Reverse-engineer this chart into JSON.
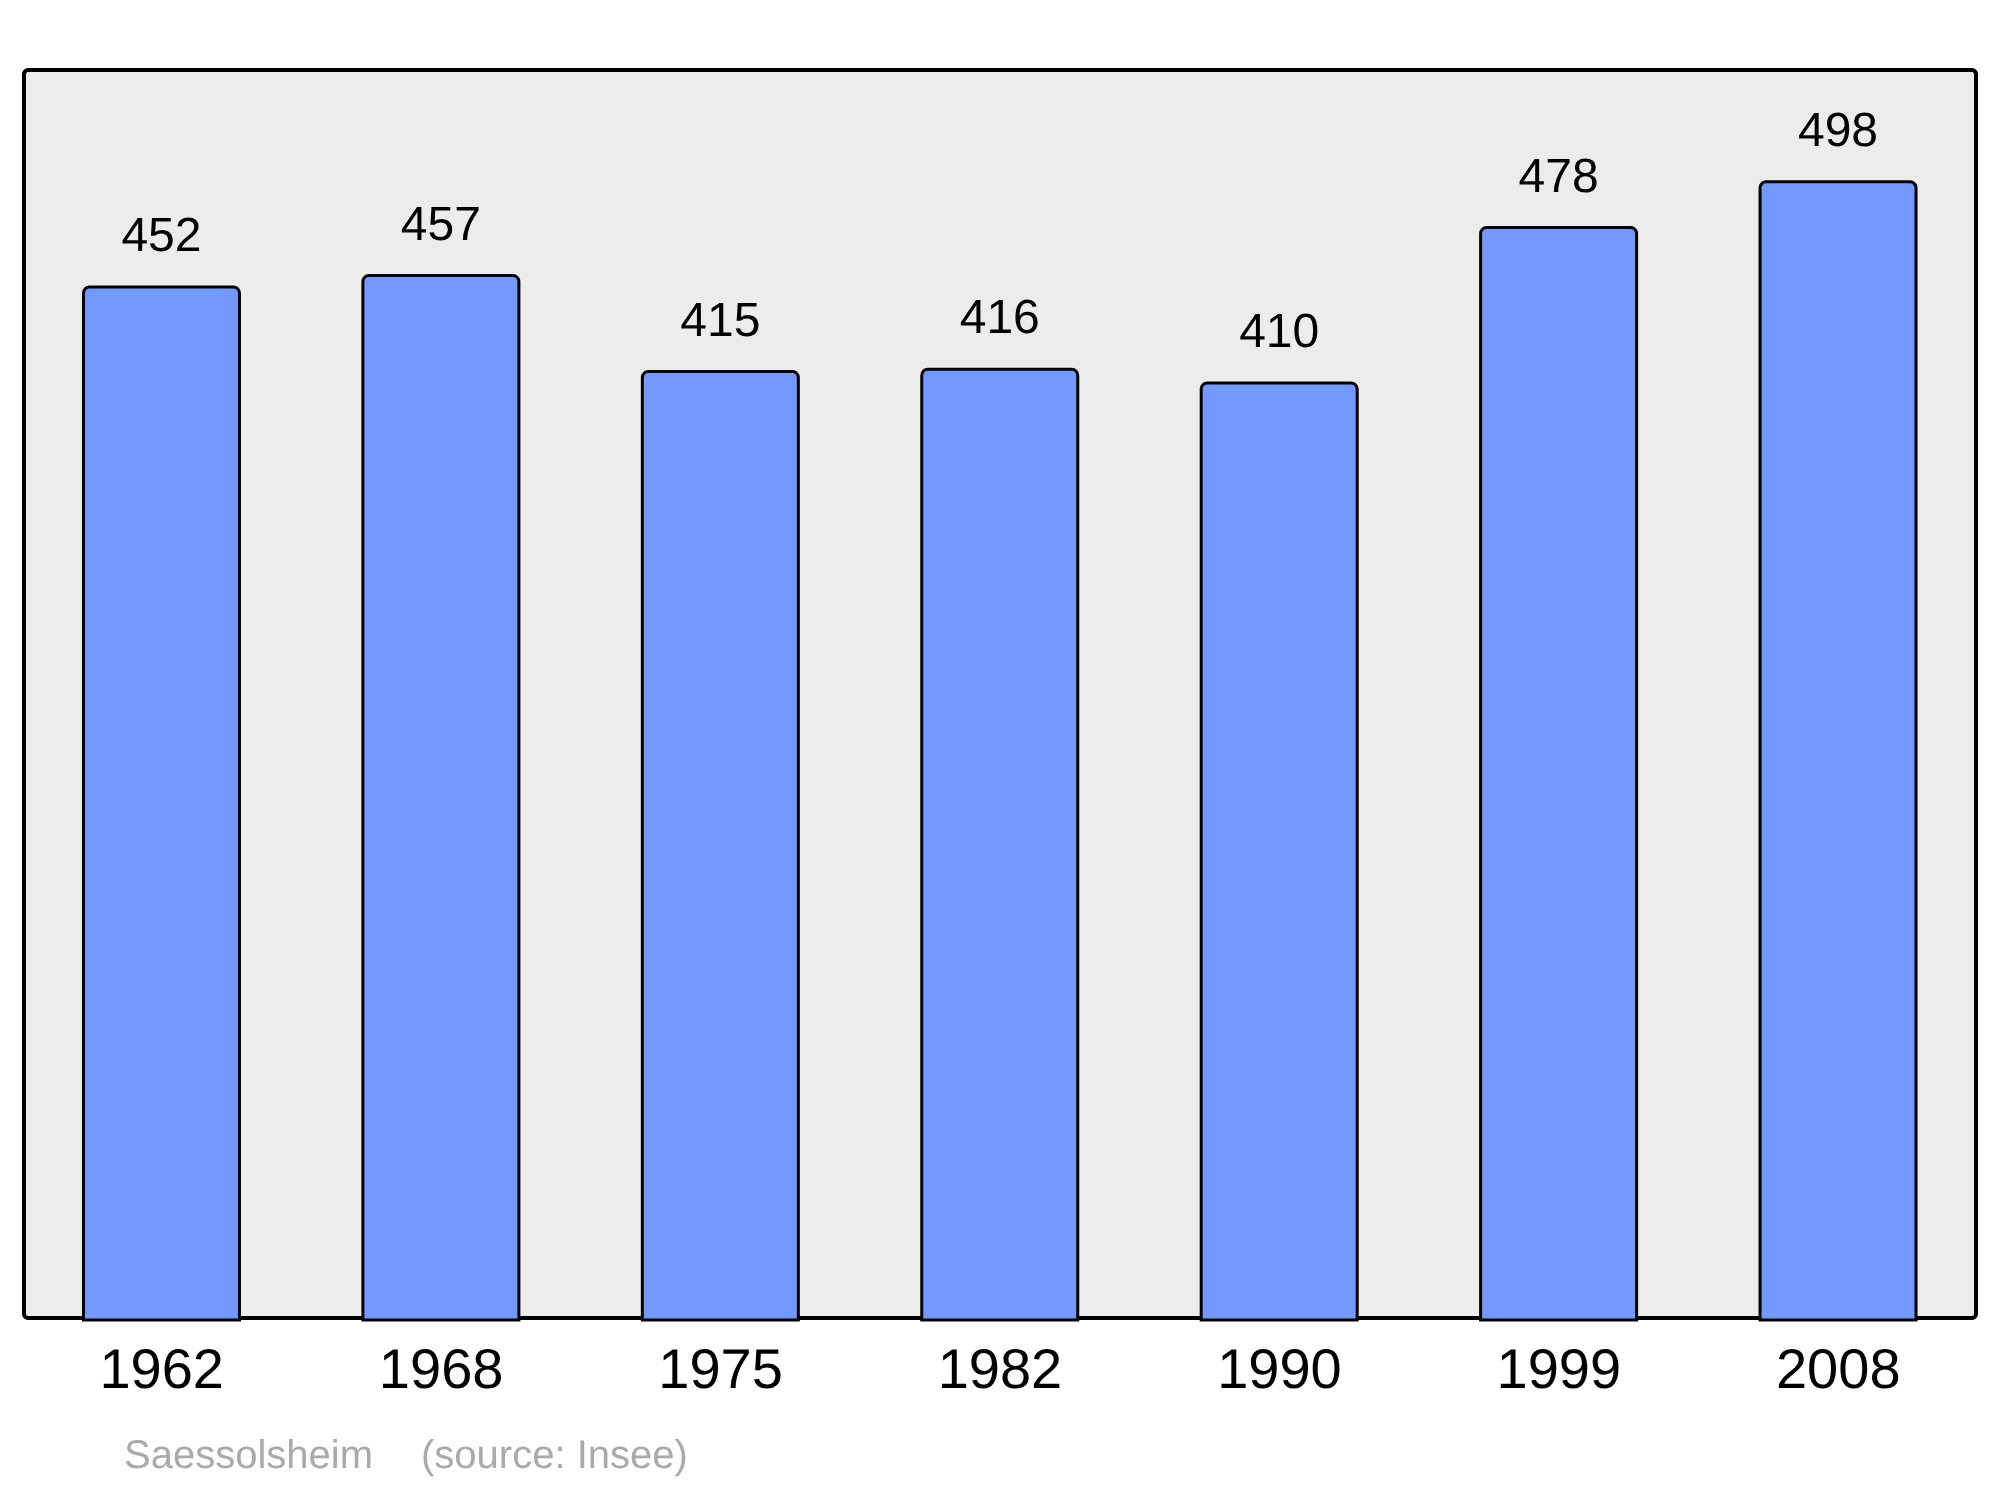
{
  "chart_data": {
    "type": "bar",
    "categories": [
      "1962",
      "1968",
      "1975",
      "1982",
      "1990",
      "1999",
      "2008"
    ],
    "values": [
      452,
      457,
      415,
      416,
      410,
      478,
      498
    ],
    "color": "#7399ff",
    "data_labels": true,
    "annotations": [
      "Saessolsheim",
      "(source: Insee)"
    ]
  }
}
